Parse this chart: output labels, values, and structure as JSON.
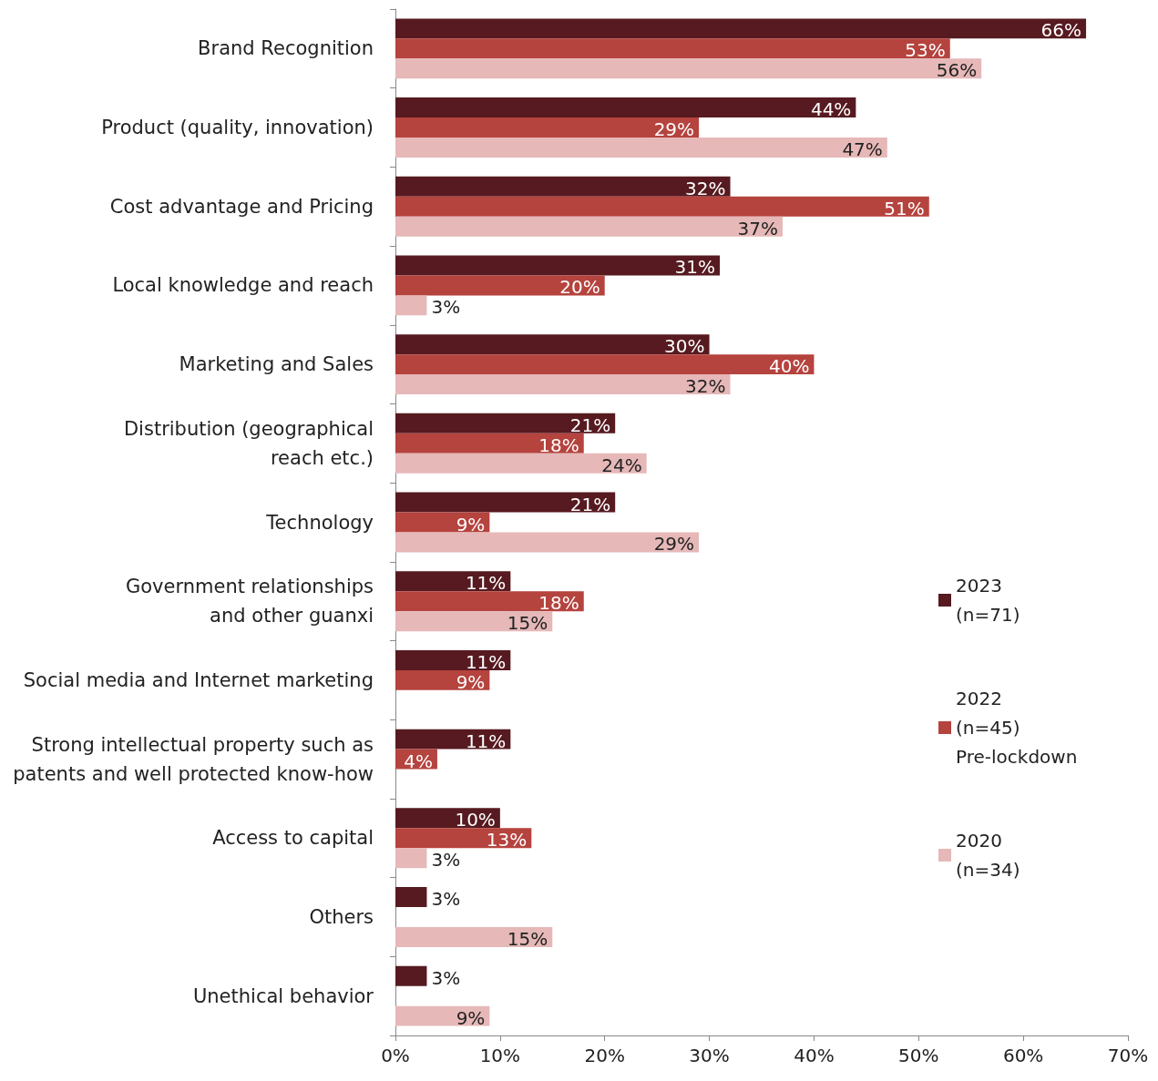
{
  "chart_data": {
    "type": "bar",
    "orientation": "horizontal",
    "categories": [
      "Brand Recognition",
      "Product (quality, innovation)",
      "Cost advantage and Pricing",
      "Local knowledge and reach",
      "Marketing and Sales",
      "Distribution (geographical\nreach etc.)",
      "Technology",
      "Government relationships\nand other guanxi",
      "Social media and Internet marketing",
      "Strong intellectual property such as\npatents and well protected know-how",
      "Access to capital",
      "Others",
      "Unethical behavior"
    ],
    "series": [
      {
        "name": "2023\n(n=71)",
        "color": "#561a20",
        "values": [
          66,
          44,
          32,
          31,
          30,
          21,
          21,
          11,
          11,
          11,
          10,
          3,
          3
        ],
        "value_labels": [
          "66%",
          "44%",
          "32%",
          "31%",
          "30%",
          "21%",
          "21%",
          "11%",
          "11%",
          "11%",
          "10%",
          "3%",
          "3%"
        ]
      },
      {
        "name": "2022\n(n=45)\nPre-lockdown",
        "color": "#b5433e",
        "values": [
          53,
          29,
          51,
          20,
          40,
          18,
          9,
          18,
          9,
          4,
          13,
          null,
          null
        ],
        "value_labels": [
          "53%",
          "29%",
          "51%",
          "20%",
          "40%",
          "18%",
          "9%",
          "18%",
          "9%",
          "4%",
          "13%",
          null,
          null
        ]
      },
      {
        "name": "2020\n(n=34)",
        "color": "#e6b8b8",
        "values": [
          56,
          47,
          37,
          3,
          32,
          24,
          29,
          15,
          null,
          null,
          3,
          15,
          9
        ],
        "value_labels": [
          "56%",
          "47%",
          "37%",
          "3%",
          "32%",
          "24%",
          "29%",
          "15%",
          null,
          null,
          "3%",
          "15%",
          "9%"
        ]
      }
    ],
    "xlim": [
      0,
      70
    ],
    "xticks": [
      {
        "value": 0,
        "label": "0%"
      },
      {
        "value": 10,
        "label": "10%"
      },
      {
        "value": 20,
        "label": "20%"
      },
      {
        "value": 30,
        "label": "30%"
      },
      {
        "value": 40,
        "label": "40%"
      },
      {
        "value": 50,
        "label": "50%"
      },
      {
        "value": 60,
        "label": "60%"
      },
      {
        "value": 70,
        "label": "70%"
      }
    ],
    "grid": false,
    "legend": "right"
  }
}
